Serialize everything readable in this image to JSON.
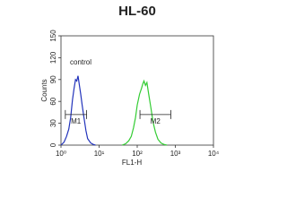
{
  "chart_data": {
    "type": "line",
    "title": "HL-60",
    "x_label": "FL1-H",
    "y_label": "Counts",
    "xscale": "log",
    "xlim": [
      1,
      10000
    ],
    "xticks": [
      {
        "value": 1,
        "label": "10⁰"
      },
      {
        "value": 10,
        "label": "10¹"
      },
      {
        "value": 100,
        "label": "10²"
      },
      {
        "value": 1000,
        "label": "10³"
      },
      {
        "value": 10000,
        "label": "10⁴"
      }
    ],
    "ylim": [
      0,
      150
    ],
    "yticks": [
      0,
      30,
      60,
      90,
      120,
      150
    ],
    "series": [
      {
        "name": "control",
        "color": "#2233bb",
        "x": [
          1,
          1.2,
          1.4,
          1.6,
          1.8,
          2,
          2.2,
          2.4,
          2.6,
          2.8,
          3,
          3.3,
          3.6,
          4,
          4.5,
          5,
          6,
          7,
          8
        ],
        "values": [
          0,
          4,
          12,
          22,
          38,
          62,
          78,
          90,
          88,
          95,
          84,
          70,
          55,
          38,
          20,
          9,
          3,
          1,
          0
        ]
      },
      {
        "color": "#33cc33",
        "x": [
          40,
          50,
          60,
          70,
          80,
          90,
          100,
          115,
          130,
          140,
          150,
          165,
          180,
          200,
          230,
          260,
          300,
          350,
          420,
          500,
          600
        ],
        "values": [
          0,
          2,
          6,
          12,
          24,
          38,
          55,
          70,
          78,
          84,
          88,
          82,
          86,
          70,
          50,
          32,
          18,
          8,
          3,
          1,
          0
        ]
      }
    ],
    "markers": [
      {
        "label": "M1",
        "range": [
          1.3,
          4.7
        ],
        "y": 42
      },
      {
        "label": "M2",
        "range": [
          118,
          760
        ],
        "y": 42
      }
    ]
  }
}
